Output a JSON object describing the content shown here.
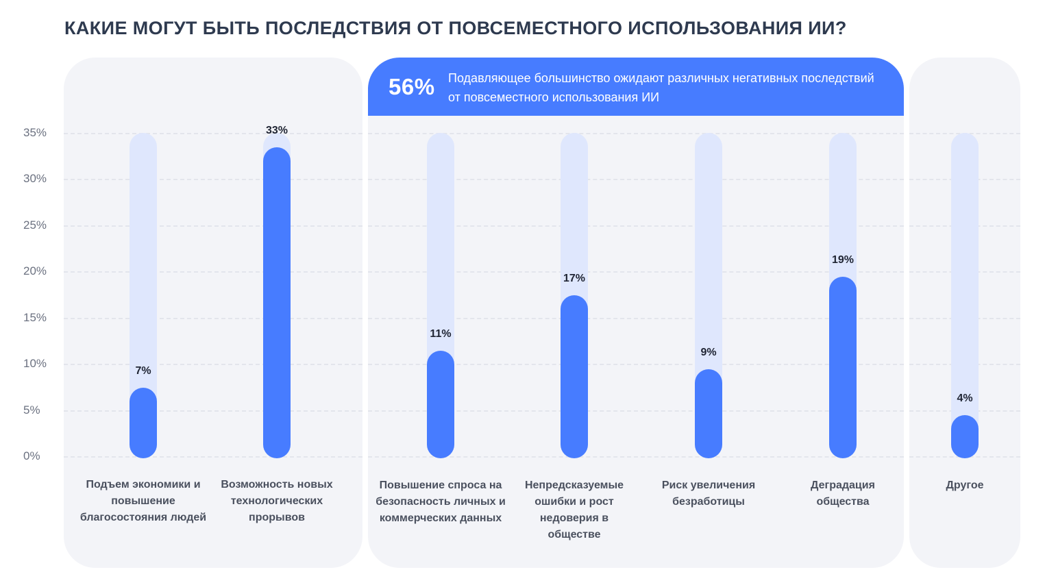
{
  "title": "КАКИЕ МОГУТ БЫТЬ ПОСЛЕДСТВИЯ ОТ ПОВСЕМЕСТНОГО ИСПОЛЬЗОВАНИЯ ИИ?",
  "banner": {
    "percent": "56%",
    "text": "Подавляющее большинство ожидают различных негативных последствий от повсеместного использования ИИ"
  },
  "colors": {
    "bar": "#477cff",
    "track": "#dfe7fd",
    "panel": "#f3f4f8",
    "banner": "#477cff"
  },
  "chart_data": {
    "type": "bar",
    "categories": [
      "Подъем экономики и повышение благосостояния людей",
      "Возможность новых технологических прорывов",
      "Повышение спроса на безопасность личных и коммерческих данных",
      "Непредсказуемые ошибки и рост недоверия в обществе",
      "Риск увеличения безработицы",
      "Деградация общества",
      "Другое"
    ],
    "values": [
      7,
      33,
      11,
      17,
      9,
      19,
      4
    ],
    "value_labels": [
      "7%",
      "33%",
      "11%",
      "17%",
      "9%",
      "19%",
      "4%"
    ],
    "yticks": [
      "0%",
      "5%",
      "10%",
      "15%",
      "20%",
      "25%",
      "30%",
      "35%"
    ],
    "ylim": [
      0,
      35
    ],
    "grid": true
  }
}
